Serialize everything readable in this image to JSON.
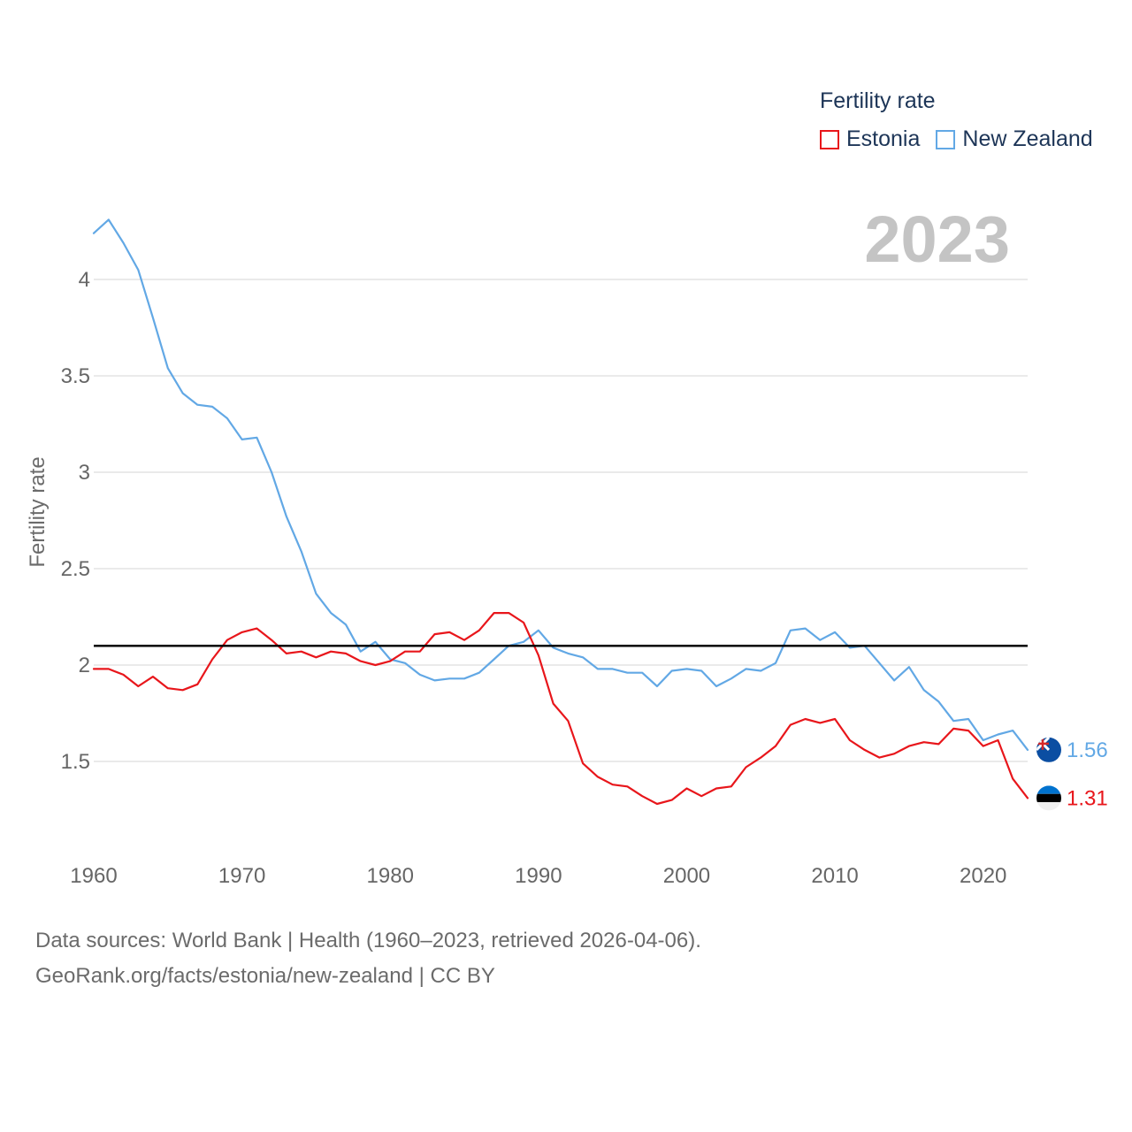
{
  "legend": {
    "title": "Fertility rate",
    "items": [
      {
        "name": "Estonia",
        "color": "#e8161b"
      },
      {
        "name": "New Zealand",
        "color": "#62a8e5"
      }
    ]
  },
  "year_label": "2023",
  "source": {
    "line1": "Data sources: World Bank | Health (1960–2023, retrieved 2026-04-06).",
    "line2": "GeoRank.org/facts/estonia/new-zealand | CC BY"
  },
  "chart_data": {
    "type": "line",
    "title": "Fertility rate",
    "xlabel": "",
    "ylabel": "Fertility rate",
    "xlim": [
      1960,
      2023
    ],
    "ylim": [
      1.1,
      4.4
    ],
    "x_ticks": [
      1960,
      1970,
      1980,
      1990,
      2000,
      2010,
      2020
    ],
    "y_ticks": [
      1.5,
      2,
      2.5,
      3,
      3.5,
      4
    ],
    "y_tick_labels": [
      "1.5",
      "2",
      "2.5",
      "3",
      "3.5",
      "4"
    ],
    "reference_line": {
      "y": 2.1,
      "color": "#000000"
    },
    "x": [
      1960,
      1961,
      1962,
      1963,
      1964,
      1965,
      1966,
      1967,
      1968,
      1969,
      1970,
      1971,
      1972,
      1973,
      1974,
      1975,
      1976,
      1977,
      1978,
      1979,
      1980,
      1981,
      1982,
      1983,
      1984,
      1985,
      1986,
      1987,
      1988,
      1989,
      1990,
      1991,
      1992,
      1993,
      1994,
      1995,
      1996,
      1997,
      1998,
      1999,
      2000,
      2001,
      2002,
      2003,
      2004,
      2005,
      2006,
      2007,
      2008,
      2009,
      2010,
      2011,
      2012,
      2013,
      2014,
      2015,
      2016,
      2017,
      2018,
      2019,
      2020,
      2021,
      2022,
      2023
    ],
    "series": [
      {
        "name": "Estonia",
        "color": "#e8161b",
        "end_label": "1.31",
        "values": [
          1.98,
          1.98,
          1.95,
          1.89,
          1.94,
          1.88,
          1.87,
          1.9,
          2.03,
          2.13,
          2.17,
          2.19,
          2.13,
          2.06,
          2.07,
          2.04,
          2.07,
          2.06,
          2.02,
          2.0,
          2.02,
          2.07,
          2.07,
          2.16,
          2.17,
          2.13,
          2.18,
          2.27,
          2.27,
          2.22,
          2.05,
          1.8,
          1.71,
          1.49,
          1.42,
          1.38,
          1.37,
          1.32,
          1.28,
          1.3,
          1.36,
          1.32,
          1.36,
          1.37,
          1.47,
          1.52,
          1.58,
          1.69,
          1.72,
          1.7,
          1.72,
          1.61,
          1.56,
          1.52,
          1.54,
          1.58,
          1.6,
          1.59,
          1.67,
          1.66,
          1.58,
          1.61,
          1.41,
          1.31
        ]
      },
      {
        "name": "New Zealand",
        "color": "#62a8e5",
        "end_label": "1.56",
        "values": [
          4.24,
          4.31,
          4.19,
          4.05,
          3.8,
          3.54,
          3.41,
          3.35,
          3.34,
          3.28,
          3.17,
          3.18,
          3.0,
          2.77,
          2.59,
          2.37,
          2.27,
          2.21,
          2.07,
          2.12,
          2.03,
          2.01,
          1.95,
          1.92,
          1.93,
          1.93,
          1.96,
          2.03,
          2.1,
          2.12,
          2.18,
          2.09,
          2.06,
          2.04,
          1.98,
          1.98,
          1.96,
          1.96,
          1.89,
          1.97,
          1.98,
          1.97,
          1.89,
          1.93,
          1.98,
          1.97,
          2.01,
          2.18,
          2.19,
          2.13,
          2.17,
          2.09,
          2.1,
          2.01,
          1.92,
          1.99,
          1.87,
          1.81,
          1.71,
          1.72,
          1.61,
          1.64,
          1.66,
          1.56
        ]
      }
    ]
  }
}
